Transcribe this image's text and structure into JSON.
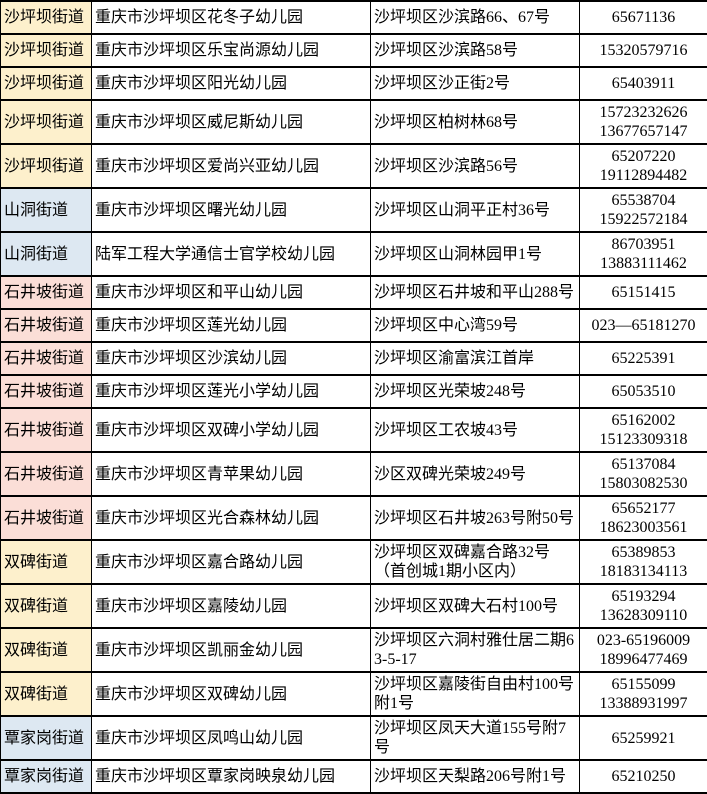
{
  "colors": {
    "yellow": "#fdf0cc",
    "blue": "#dde8f2",
    "pink": "#fbded7",
    "border": "#000000",
    "text": "#000000",
    "cell_bg": "#ffffff"
  },
  "table": {
    "columns": [
      "street",
      "kindergarten_name",
      "address",
      "phone"
    ],
    "rows": [
      {
        "street": "沙坪坝街道",
        "color": "yellow",
        "name": "重庆市沙坪坝区花冬子幼儿园",
        "address": "沙坪坝区沙滨路66、67号",
        "phone": [
          "65671136"
        ]
      },
      {
        "street": "沙坪坝街道",
        "color": "yellow",
        "name": "重庆市沙坪坝区乐宝尚源幼儿园",
        "address": "沙坪坝区沙滨路58号",
        "phone": [
          "15320579716"
        ]
      },
      {
        "street": "沙坪坝街道",
        "color": "yellow",
        "name": "重庆市沙坪坝区阳光幼儿园",
        "address": "沙坪坝区沙正街2号",
        "phone": [
          "65403911"
        ]
      },
      {
        "street": "沙坪坝街道",
        "color": "yellow",
        "name": "重庆市沙坪坝区威尼斯幼儿园",
        "address": "沙坪坝区柏树林68号",
        "phone": [
          "15723232626",
          "13677657147"
        ]
      },
      {
        "street": "沙坪坝街道",
        "color": "yellow",
        "name": "重庆市沙坪坝区爱尚兴亚幼儿园",
        "address": "沙坪坝区沙滨路56号",
        "phone": [
          "65207220",
          "19112894482"
        ]
      },
      {
        "street": "山洞街道",
        "color": "blue",
        "name": "重庆市沙坪坝区曙光幼儿园",
        "address": "沙坪坝区山洞平正村36号",
        "phone": [
          "65538704",
          "15922572184"
        ]
      },
      {
        "street": "山洞街道",
        "color": "blue",
        "name": "陆军工程大学通信士官学校幼儿园",
        "address": "沙坪坝区山洞林园甲1号",
        "phone": [
          "86703951",
          "13883111462"
        ]
      },
      {
        "street": "石井坡街道",
        "color": "pink",
        "name": "重庆市沙坪坝区和平山幼儿园",
        "address": "沙坪坝区石井坡和平山288号",
        "phone": [
          "65151415"
        ]
      },
      {
        "street": "石井坡街道",
        "color": "pink",
        "name": "重庆市沙坪坝区莲光幼儿园",
        "address": "沙坪坝区中心湾59号",
        "phone": [
          "023—65181270"
        ]
      },
      {
        "street": "石井坡街道",
        "color": "pink",
        "name": "重庆市沙坪坝区沙滨幼儿园",
        "address": "沙坪坝区渝富滨江首岸",
        "phone": [
          "65225391"
        ]
      },
      {
        "street": "石井坡街道",
        "color": "pink",
        "name": "重庆市沙坪坝区莲光小学幼儿园",
        "address": "沙坪坝区光荣坡248号",
        "phone": [
          "65053510"
        ]
      },
      {
        "street": "石井坡街道",
        "color": "pink",
        "name": "重庆市沙坪坝区双碑小学幼儿园",
        "address": "沙坪坝区工农坡43号",
        "phone": [
          "65162002",
          "15123309318"
        ]
      },
      {
        "street": "石井坡街道",
        "color": "pink",
        "name": "重庆市沙坪坝区青苹果幼儿园",
        "address": "沙区双碑光荣坡249号",
        "phone": [
          "65137084",
          "15803082530"
        ]
      },
      {
        "street": "石井坡街道",
        "color": "pink",
        "name": "重庆市沙坪坝区光合森林幼儿园",
        "address": "沙坪坝区石井坡263号附50号",
        "phone": [
          "65652177",
          "18623003561"
        ]
      },
      {
        "street": "双碑街道",
        "color": "yellow",
        "name": "重庆市沙坪坝区嘉合路幼儿园",
        "address": "沙坪坝区双碑嘉合路32号（首创城1期小区内）",
        "phone": [
          "65389853",
          "18183134113"
        ]
      },
      {
        "street": "双碑街道",
        "color": "yellow",
        "name": "重庆市沙坪坝区嘉陵幼儿园",
        "address": "沙坪坝区双碑大石村100号",
        "phone": [
          "65193294",
          "13628309110"
        ]
      },
      {
        "street": "双碑街道",
        "color": "yellow",
        "name": "重庆市沙坪坝区凯丽金幼儿园",
        "address": "沙坪坝区六洞村雅仕居二期63-5-17",
        "phone": [
          "023-65196009",
          "18996477469"
        ]
      },
      {
        "street": "双碑街道",
        "color": "yellow",
        "name": "重庆市沙坪坝区双碑幼儿园",
        "address": "沙坪坝区嘉陵街自由村100号附1号",
        "phone": [
          "65155099",
          "13388931997"
        ]
      },
      {
        "street": "覃家岗街道",
        "color": "blue",
        "name": "重庆市沙坪坝区凤鸣山幼儿园",
        "address": "沙坪坝区凤天大道155号附7号",
        "phone": [
          "65259921"
        ]
      },
      {
        "street": "覃家岗街道",
        "color": "blue",
        "name": "重庆市沙坪坝区覃家岗映泉幼儿园",
        "address": "沙坪坝区天梨路206号附1号",
        "phone": [
          "65210250"
        ]
      }
    ]
  }
}
